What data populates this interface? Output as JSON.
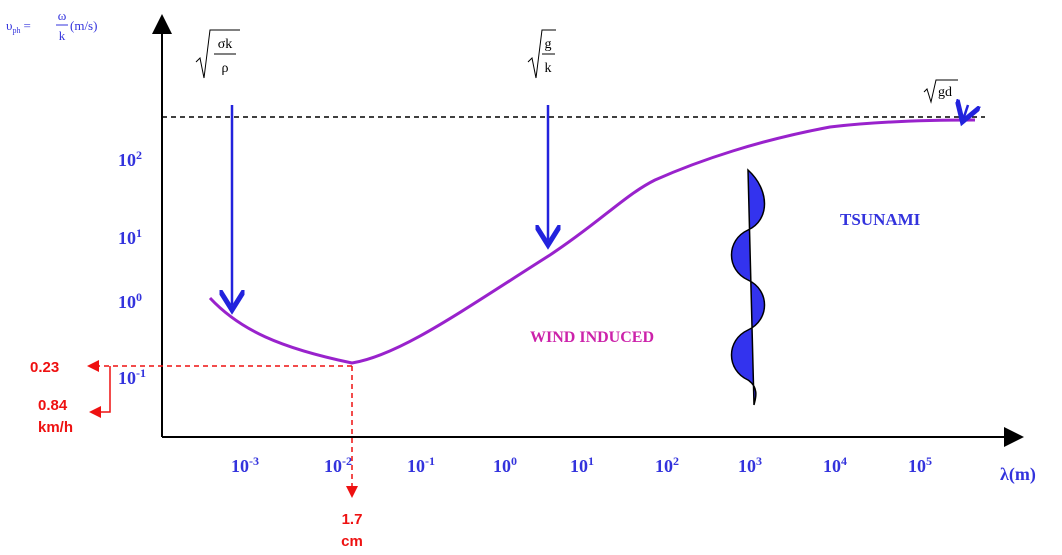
{
  "y_axis_label": {
    "symbol": "υ",
    "subscript": "ph",
    "equals": "=",
    "numerator": "ω",
    "denominator": "k",
    "unit": "(m/s)"
  },
  "x_axis_label": "λ(m)",
  "x_ticks": [
    {
      "base": "10",
      "exp": "-3"
    },
    {
      "base": "10",
      "exp": "-2"
    },
    {
      "base": "10",
      "exp": "-1"
    },
    {
      "base": "10",
      "exp": "0"
    },
    {
      "base": "10",
      "exp": "1"
    },
    {
      "base": "10",
      "exp": "2"
    },
    {
      "base": "10",
      "exp": "3"
    },
    {
      "base": "10",
      "exp": "4"
    },
    {
      "base": "10",
      "exp": "5"
    }
  ],
  "y_ticks": [
    {
      "base": "10",
      "exp": "2"
    },
    {
      "base": "10",
      "exp": "1"
    },
    {
      "base": "10",
      "exp": "0"
    },
    {
      "base": "10",
      "exp": "-1"
    }
  ],
  "formulas": {
    "capillary": {
      "numerator": "σk",
      "denominator": "ρ"
    },
    "gravity": {
      "numerator": "g",
      "denominator": "k"
    },
    "shallow": "gd"
  },
  "regions": {
    "wind": "WIND INDUCED",
    "tsunami": "TSUNAMI"
  },
  "minimum": {
    "velocity": "0.23",
    "speed": [
      "0.84",
      "km/h"
    ],
    "wavelength": [
      "1.7",
      "cm"
    ]
  }
}
